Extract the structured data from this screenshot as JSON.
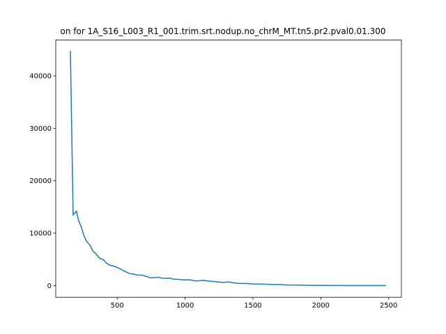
{
  "chart_data": {
    "type": "line",
    "title": "on for 1A_S16_L003_R1_001.trim.srt.nodup.no_chrM_MT.tn5.pr2.pval0.01.300",
    "x": [
      155,
      175,
      200,
      215,
      235,
      255,
      275,
      300,
      320,
      345,
      370,
      395,
      420,
      445,
      475,
      505,
      535,
      565,
      590,
      620,
      650,
      680,
      710,
      740,
      770,
      800,
      830,
      860,
      890,
      920,
      950,
      980,
      1010,
      1040,
      1070,
      1100,
      1130,
      1160,
      1200,
      1240,
      1280,
      1320,
      1360,
      1400,
      1450,
      1500,
      1550,
      1600,
      1650,
      1700,
      1750,
      1800,
      1850,
      1900,
      1950,
      2000,
      2050,
      2100,
      2150,
      2200,
      2250,
      2300,
      2350,
      2400,
      2450,
      2480
    ],
    "series": [
      {
        "color": "#1f77b4",
        "values": [
          44700,
          13500,
          14200,
          12400,
          11200,
          9500,
          8400,
          7700,
          6600,
          6000,
          5200,
          5000,
          4300,
          3900,
          3700,
          3400,
          3000,
          2600,
          2300,
          2200,
          2000,
          2000,
          1800,
          1500,
          1500,
          1600,
          1400,
          1400,
          1400,
          1200,
          1200,
          1100,
          1100,
          1100,
          900,
          900,
          1000,
          900,
          800,
          700,
          600,
          700,
          500,
          400,
          400,
          300,
          300,
          250,
          200,
          200,
          100,
          100,
          80,
          60,
          40,
          30,
          30,
          20,
          10,
          10,
          10,
          5,
          5,
          3,
          2,
          2
        ]
      }
    ],
    "xlim": [
      47,
      2594
    ],
    "ylim": [
      -2230,
      46830
    ],
    "xticks": [
      500,
      1000,
      1500,
      2000,
      2500
    ],
    "yticks": [
      0,
      10000,
      20000,
      30000,
      40000
    ]
  }
}
